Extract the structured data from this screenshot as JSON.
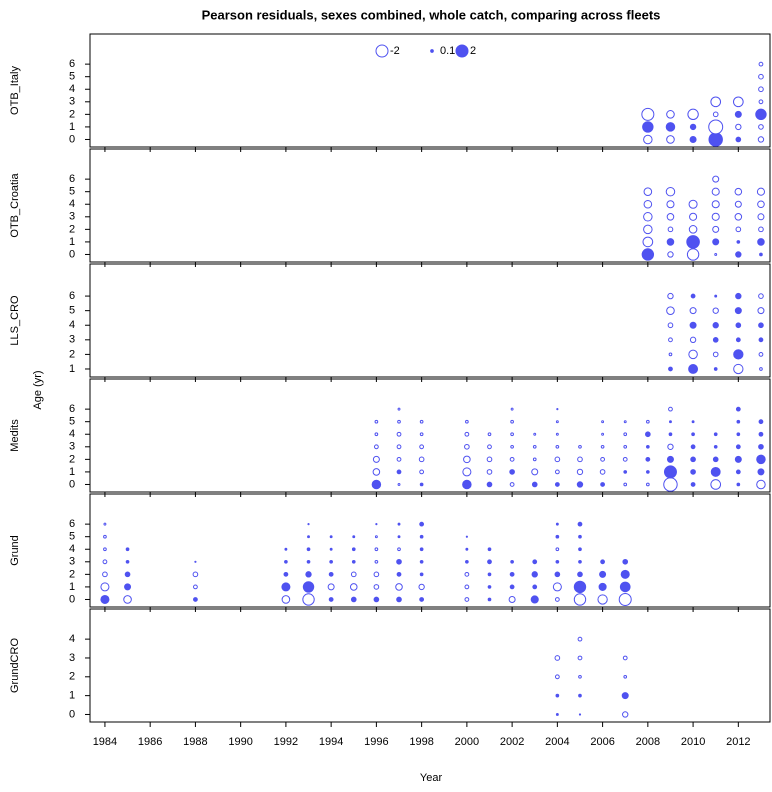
{
  "chart_data": {
    "type": "bubble",
    "title": "Pearson residuals, sexes combined, whole catch, comparing across fleets",
    "xlabel": "Year",
    "ylabel": "Age (yr)",
    "color": "#4f52f0",
    "legend": {
      "values": [
        -2,
        0.1,
        2
      ]
    },
    "xlim": [
      1983.34,
      2013.4
    ],
    "xticks": [
      1984,
      1986,
      1988,
      1990,
      1992,
      1994,
      1996,
      1998,
      2000,
      2002,
      2004,
      2006,
      2008,
      2010,
      2012
    ],
    "panels": [
      {
        "name": "OTB_Italy",
        "ylim": [
          -0.6,
          8.4
        ],
        "yticks": [
          0,
          1,
          2,
          3,
          4,
          5,
          6
        ],
        "ages": [
          0,
          1,
          2,
          3,
          4,
          5,
          6
        ],
        "years": [
          2008,
          2009,
          2010,
          2011,
          2012,
          2013
        ],
        "residuals": [
          [
            -1,
            1.5,
            -2,
            null,
            null,
            null,
            null
          ],
          [
            -0.8,
            1,
            -0.8,
            null,
            null,
            null,
            null
          ],
          [
            0.5,
            0.4,
            -1.5,
            null,
            null,
            null,
            null
          ],
          [
            2.5,
            -2.7,
            -0.3,
            -1.3,
            null,
            null,
            null
          ],
          [
            0.3,
            -0.4,
            0.5,
            -1.3,
            null,
            null,
            null
          ],
          [
            -0.4,
            -0.3,
            1.5,
            -0.2,
            -0.3,
            -0.3,
            -0.2
          ]
        ]
      },
      {
        "name": "OTB_Croatia",
        "ylim": [
          -0.6,
          8.4
        ],
        "yticks": [
          0,
          1,
          2,
          3,
          4,
          5,
          6
        ],
        "ages": [
          0,
          1,
          2,
          3,
          4,
          5,
          6
        ],
        "years": [
          2008,
          2009,
          2010,
          2011,
          2012,
          2013
        ],
        "residuals": [
          [
            1.8,
            -1.3,
            -1,
            -1,
            -0.8,
            -0.8,
            null
          ],
          [
            -0.4,
            0.6,
            -0.3,
            -0.6,
            -0.7,
            -1,
            null
          ],
          [
            -1.8,
            2.2,
            -0.8,
            -0.7,
            -0.9,
            null,
            null
          ],
          [
            -0.05,
            0.5,
            -0.5,
            -0.7,
            -0.7,
            -0.7,
            -0.5
          ],
          [
            0.4,
            0.1,
            -0.3,
            -0.6,
            -0.5,
            -0.6,
            null
          ],
          [
            0.1,
            0.6,
            -0.3,
            -0.5,
            -0.6,
            -0.7,
            null
          ]
        ]
      },
      {
        "name": "LLS_CRO",
        "ylim": [
          0.45,
          8.2
        ],
        "yticks": [
          1,
          2,
          3,
          4,
          5,
          6
        ],
        "ages": [
          1,
          2,
          3,
          4,
          5,
          6
        ],
        "years": [
          2009,
          2010,
          2011,
          2012,
          2013
        ],
        "residuals": [
          [
            0.2,
            -0.1,
            -0.2,
            -0.3,
            -0.8,
            -0.4
          ],
          [
            1.1,
            -1,
            -0.4,
            0.5,
            -0.5,
            0.2
          ],
          [
            0.1,
            -0.3,
            0.3,
            0.4,
            -0.4,
            0.05
          ],
          [
            -1.2,
            1.2,
            0.2,
            0.3,
            0.5,
            0.4
          ],
          [
            -0.1,
            -0.2,
            0.2,
            0.3,
            -0.5,
            -0.3
          ]
        ]
      },
      {
        "name": "Medits",
        "ylim": [
          -0.6,
          8.4
        ],
        "yticks": [
          0,
          1,
          2,
          3,
          4,
          5,
          6
        ],
        "ages": [
          0,
          1,
          2,
          3,
          4,
          5,
          6
        ],
        "years": [
          1996,
          1997,
          1998,
          2000,
          2001,
          2002,
          2003,
          2004,
          2005,
          2006,
          2007,
          2008,
          2009,
          2010,
          2011,
          2012,
          2013
        ],
        "residuals": [
          [
            1,
            -0.6,
            -0.5,
            -0.2,
            -0.1,
            -0.1,
            null
          ],
          [
            -0.05,
            0.2,
            -0.2,
            -0.2,
            -0.2,
            -0.1,
            -0.05
          ],
          [
            0.1,
            -0.2,
            -0.3,
            -0.2,
            -0.1,
            -0.1,
            null
          ],
          [
            1,
            -0.9,
            -0.6,
            -0.3,
            -0.2,
            -0.1,
            null
          ],
          [
            0.3,
            -0.3,
            -0.3,
            -0.2,
            -0.1,
            null,
            null
          ],
          [
            -0.2,
            0.3,
            -0.2,
            -0.1,
            -0.1,
            -0.1,
            -0.05
          ],
          [
            0.3,
            -0.5,
            -0.1,
            -0.1,
            -0.05,
            null,
            null
          ],
          [
            0.2,
            -0.2,
            -0.3,
            -0.1,
            -0.05,
            -0.05,
            -0.02
          ],
          [
            0.4,
            -0.4,
            -0.3,
            -0.1,
            null,
            null,
            null
          ],
          [
            0.2,
            -0.3,
            -0.2,
            -0.1,
            -0.05,
            -0.05,
            null
          ],
          [
            -0.1,
            0.1,
            -0.2,
            -0.1,
            -0.1,
            -0.05,
            null
          ],
          [
            -0.1,
            0.1,
            0.2,
            0.1,
            0.3,
            -0.1,
            null
          ],
          [
            -2.5,
            2,
            0.5,
            -0.4,
            0.1,
            0.05,
            -0.2
          ],
          [
            0.2,
            0.3,
            0.3,
            0.2,
            0.1,
            0.05,
            null
          ],
          [
            -1.3,
            1.1,
            0.3,
            0.1,
            0.1,
            null,
            null
          ],
          [
            0.1,
            0.2,
            0.5,
            0.2,
            0.1,
            0.1,
            0.2
          ],
          [
            -1,
            0.5,
            1,
            0.3,
            0.2,
            0.2,
            null
          ]
        ]
      },
      {
        "name": "Grund",
        "ylim": [
          -0.6,
          8.4
        ],
        "yticks": [
          0,
          1,
          2,
          3,
          4,
          5,
          6
        ],
        "ages": [
          0,
          1,
          2,
          3,
          4,
          5,
          6
        ],
        "years": [
          1984,
          1985,
          1988,
          1992,
          1993,
          1994,
          1995,
          1996,
          1997,
          1998,
          2000,
          2001,
          2002,
          2003,
          2004,
          2005,
          2006,
          2007
        ],
        "residuals": [
          [
            0.9,
            -0.9,
            -0.3,
            -0.2,
            -0.1,
            -0.1,
            -0.05
          ],
          [
            -0.8,
            0.5,
            0.3,
            0.1,
            0.1,
            null,
            null
          ],
          [
            0.2,
            -0.2,
            -0.3,
            -0.02,
            null,
            null,
            null
          ],
          [
            -0.8,
            0.9,
            0.2,
            0.1,
            0.05,
            null,
            null
          ],
          [
            -1.8,
            1.5,
            0.4,
            0.1,
            0.1,
            0.05,
            -0.02
          ],
          [
            0.2,
            -0.5,
            0.2,
            0.1,
            0.05,
            0.05,
            null
          ],
          [
            0.3,
            -0.6,
            -0.3,
            0.1,
            0.1,
            0.05,
            null
          ],
          [
            0.3,
            -0.3,
            -0.3,
            -0.1,
            -0.1,
            -0.05,
            0.02
          ],
          [
            0.3,
            -0.6,
            0.2,
            0.3,
            -0.1,
            0.05,
            0.05
          ],
          [
            0.2,
            -0.4,
            0.1,
            0.1,
            0.1,
            0.1,
            0.2
          ],
          [
            -0.2,
            -0.2,
            -0.2,
            0.1,
            0.05,
            0.02,
            null
          ],
          [
            0.1,
            0.1,
            0.1,
            0.2,
            0.1,
            null,
            null
          ],
          [
            -0.5,
            0.2,
            0.2,
            0.1,
            null,
            null,
            null
          ],
          [
            0.7,
            0.2,
            0.4,
            0.2,
            null,
            null,
            null
          ],
          [
            -0.2,
            -0.9,
            0.3,
            0.1,
            -0.1,
            0.1,
            0.05
          ],
          [
            -1.8,
            1.8,
            0.3,
            0.1,
            0.1,
            0.1,
            0.2
          ],
          [
            -1.2,
            0.7,
            0.5,
            0.2,
            null,
            null,
            null
          ],
          [
            -2,
            1.3,
            0.9,
            0.3,
            null,
            null,
            null
          ]
        ]
      },
      {
        "name": "GrundCRO",
        "ylim": [
          -0.4,
          5.6
        ],
        "yticks": [
          0,
          1,
          2,
          3,
          4
        ],
        "ages": [
          0,
          1,
          2,
          3,
          4
        ],
        "years": [
          2004,
          2005,
          2007
        ],
        "residuals": [
          [
            0.05,
            0.1,
            -0.2,
            -0.3,
            null
          ],
          [
            0.02,
            0.1,
            -0.1,
            -0.2,
            -0.2
          ],
          [
            -0.4,
            0.5,
            -0.1,
            -0.2,
            null
          ]
        ]
      }
    ]
  }
}
